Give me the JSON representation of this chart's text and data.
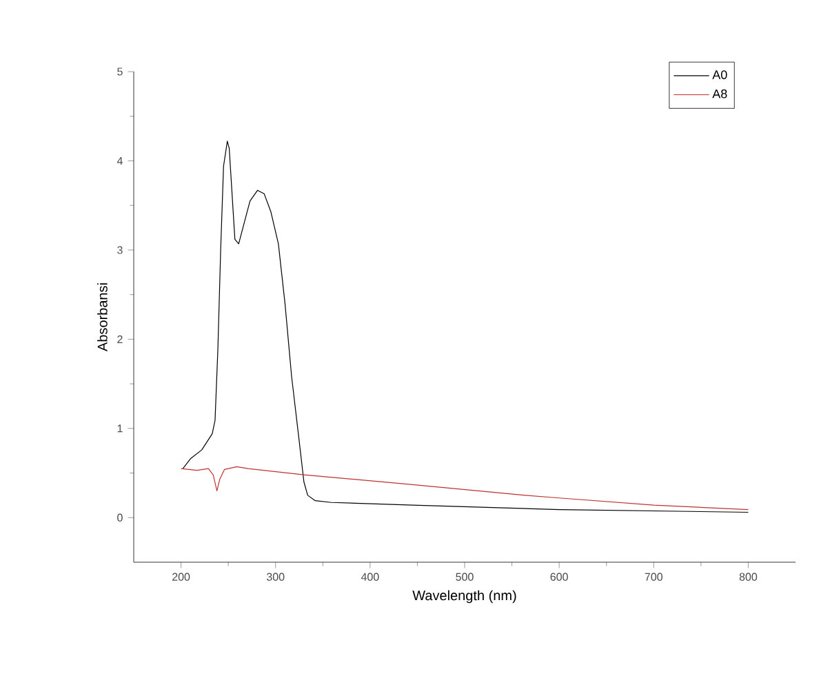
{
  "chart_data": {
    "type": "line",
    "xlabel": "Wavelength (nm)",
    "ylabel": "Absorbansi",
    "xlim": [
      150,
      850
    ],
    "ylim": [
      -0.5,
      5
    ],
    "xticks": [
      200,
      300,
      400,
      500,
      600,
      700,
      800
    ],
    "yticks": [
      0,
      1,
      2,
      3,
      4,
      5
    ],
    "grid": false,
    "legend": "top right",
    "marker": "none",
    "line_style": "solid",
    "series": [
      {
        "name": "A0",
        "color": "#000000",
        "x": [
          202,
          210,
          222,
          233,
          236,
          239,
          242,
          245,
          249,
          251,
          254,
          257,
          261,
          266,
          273,
          281,
          288,
          295,
          303,
          310,
          317,
          325,
          330,
          334,
          342,
          359,
          445,
          600,
          800
        ],
        "values": [
          0.55,
          0.66,
          0.76,
          0.94,
          1.09,
          1.89,
          3.02,
          3.94,
          4.22,
          4.14,
          3.63,
          3.12,
          3.07,
          3.27,
          3.55,
          3.67,
          3.63,
          3.43,
          3.07,
          2.4,
          1.58,
          0.86,
          0.4,
          0.25,
          0.19,
          0.17,
          0.14,
          0.09,
          0.06
        ]
      },
      {
        "name": "A8",
        "color": "#c03030",
        "x": [
          200,
          217,
          229,
          234,
          238,
          241,
          246,
          259,
          271,
          330,
          445,
          564,
          600,
          700,
          800
        ],
        "values": [
          0.55,
          0.53,
          0.55,
          0.48,
          0.3,
          0.43,
          0.54,
          0.57,
          0.55,
          0.48,
          0.37,
          0.25,
          0.22,
          0.14,
          0.09
        ]
      }
    ]
  }
}
